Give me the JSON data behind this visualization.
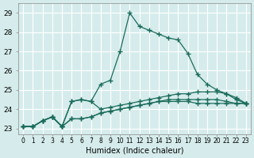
{
  "xlabel": "Humidex (Indice chaleur)",
  "background_color": "#d6ecec",
  "grid_color": "#ffffff",
  "line_color": "#1a6b5a",
  "xlim": [
    -0.5,
    23.5
  ],
  "ylim": [
    22.7,
    29.5
  ],
  "yticks": [
    23,
    24,
    25,
    26,
    27,
    28,
    29
  ],
  "xtick_labels": [
    "0",
    "1",
    "2",
    "3",
    "4",
    "5",
    "6",
    "7",
    "8",
    "9",
    "10",
    "11",
    "12",
    "13",
    "14",
    "15",
    "16",
    "17",
    "18",
    "19",
    "20",
    "21",
    "22",
    "23"
  ],
  "series": [
    [
      23.1,
      23.1,
      23.4,
      23.6,
      23.1,
      24.4,
      24.5,
      24.4,
      25.3,
      25.5,
      27.0,
      29.0,
      28.3,
      28.1,
      27.9,
      27.7,
      27.6,
      26.9,
      25.8,
      25.3,
      25.0,
      24.8,
      24.6,
      24.3
    ],
    [
      23.1,
      23.1,
      23.4,
      23.6,
      23.1,
      24.4,
      24.5,
      24.4,
      24.0,
      24.1,
      24.2,
      24.3,
      24.4,
      24.5,
      24.6,
      24.7,
      24.8,
      24.8,
      24.9,
      24.9,
      24.9,
      24.8,
      24.5,
      24.3
    ],
    [
      23.1,
      23.1,
      23.4,
      23.6,
      23.1,
      23.5,
      23.5,
      23.6,
      23.8,
      23.9,
      24.0,
      24.1,
      24.2,
      24.3,
      24.4,
      24.5,
      24.5,
      24.5,
      24.5,
      24.5,
      24.5,
      24.4,
      24.3,
      24.3
    ],
    [
      23.1,
      23.1,
      23.4,
      23.6,
      23.1,
      23.5,
      23.5,
      23.6,
      23.8,
      23.9,
      24.0,
      24.1,
      24.2,
      24.3,
      24.4,
      24.4,
      24.4,
      24.4,
      24.3,
      24.3,
      24.3,
      24.3,
      24.3,
      24.3
    ]
  ]
}
